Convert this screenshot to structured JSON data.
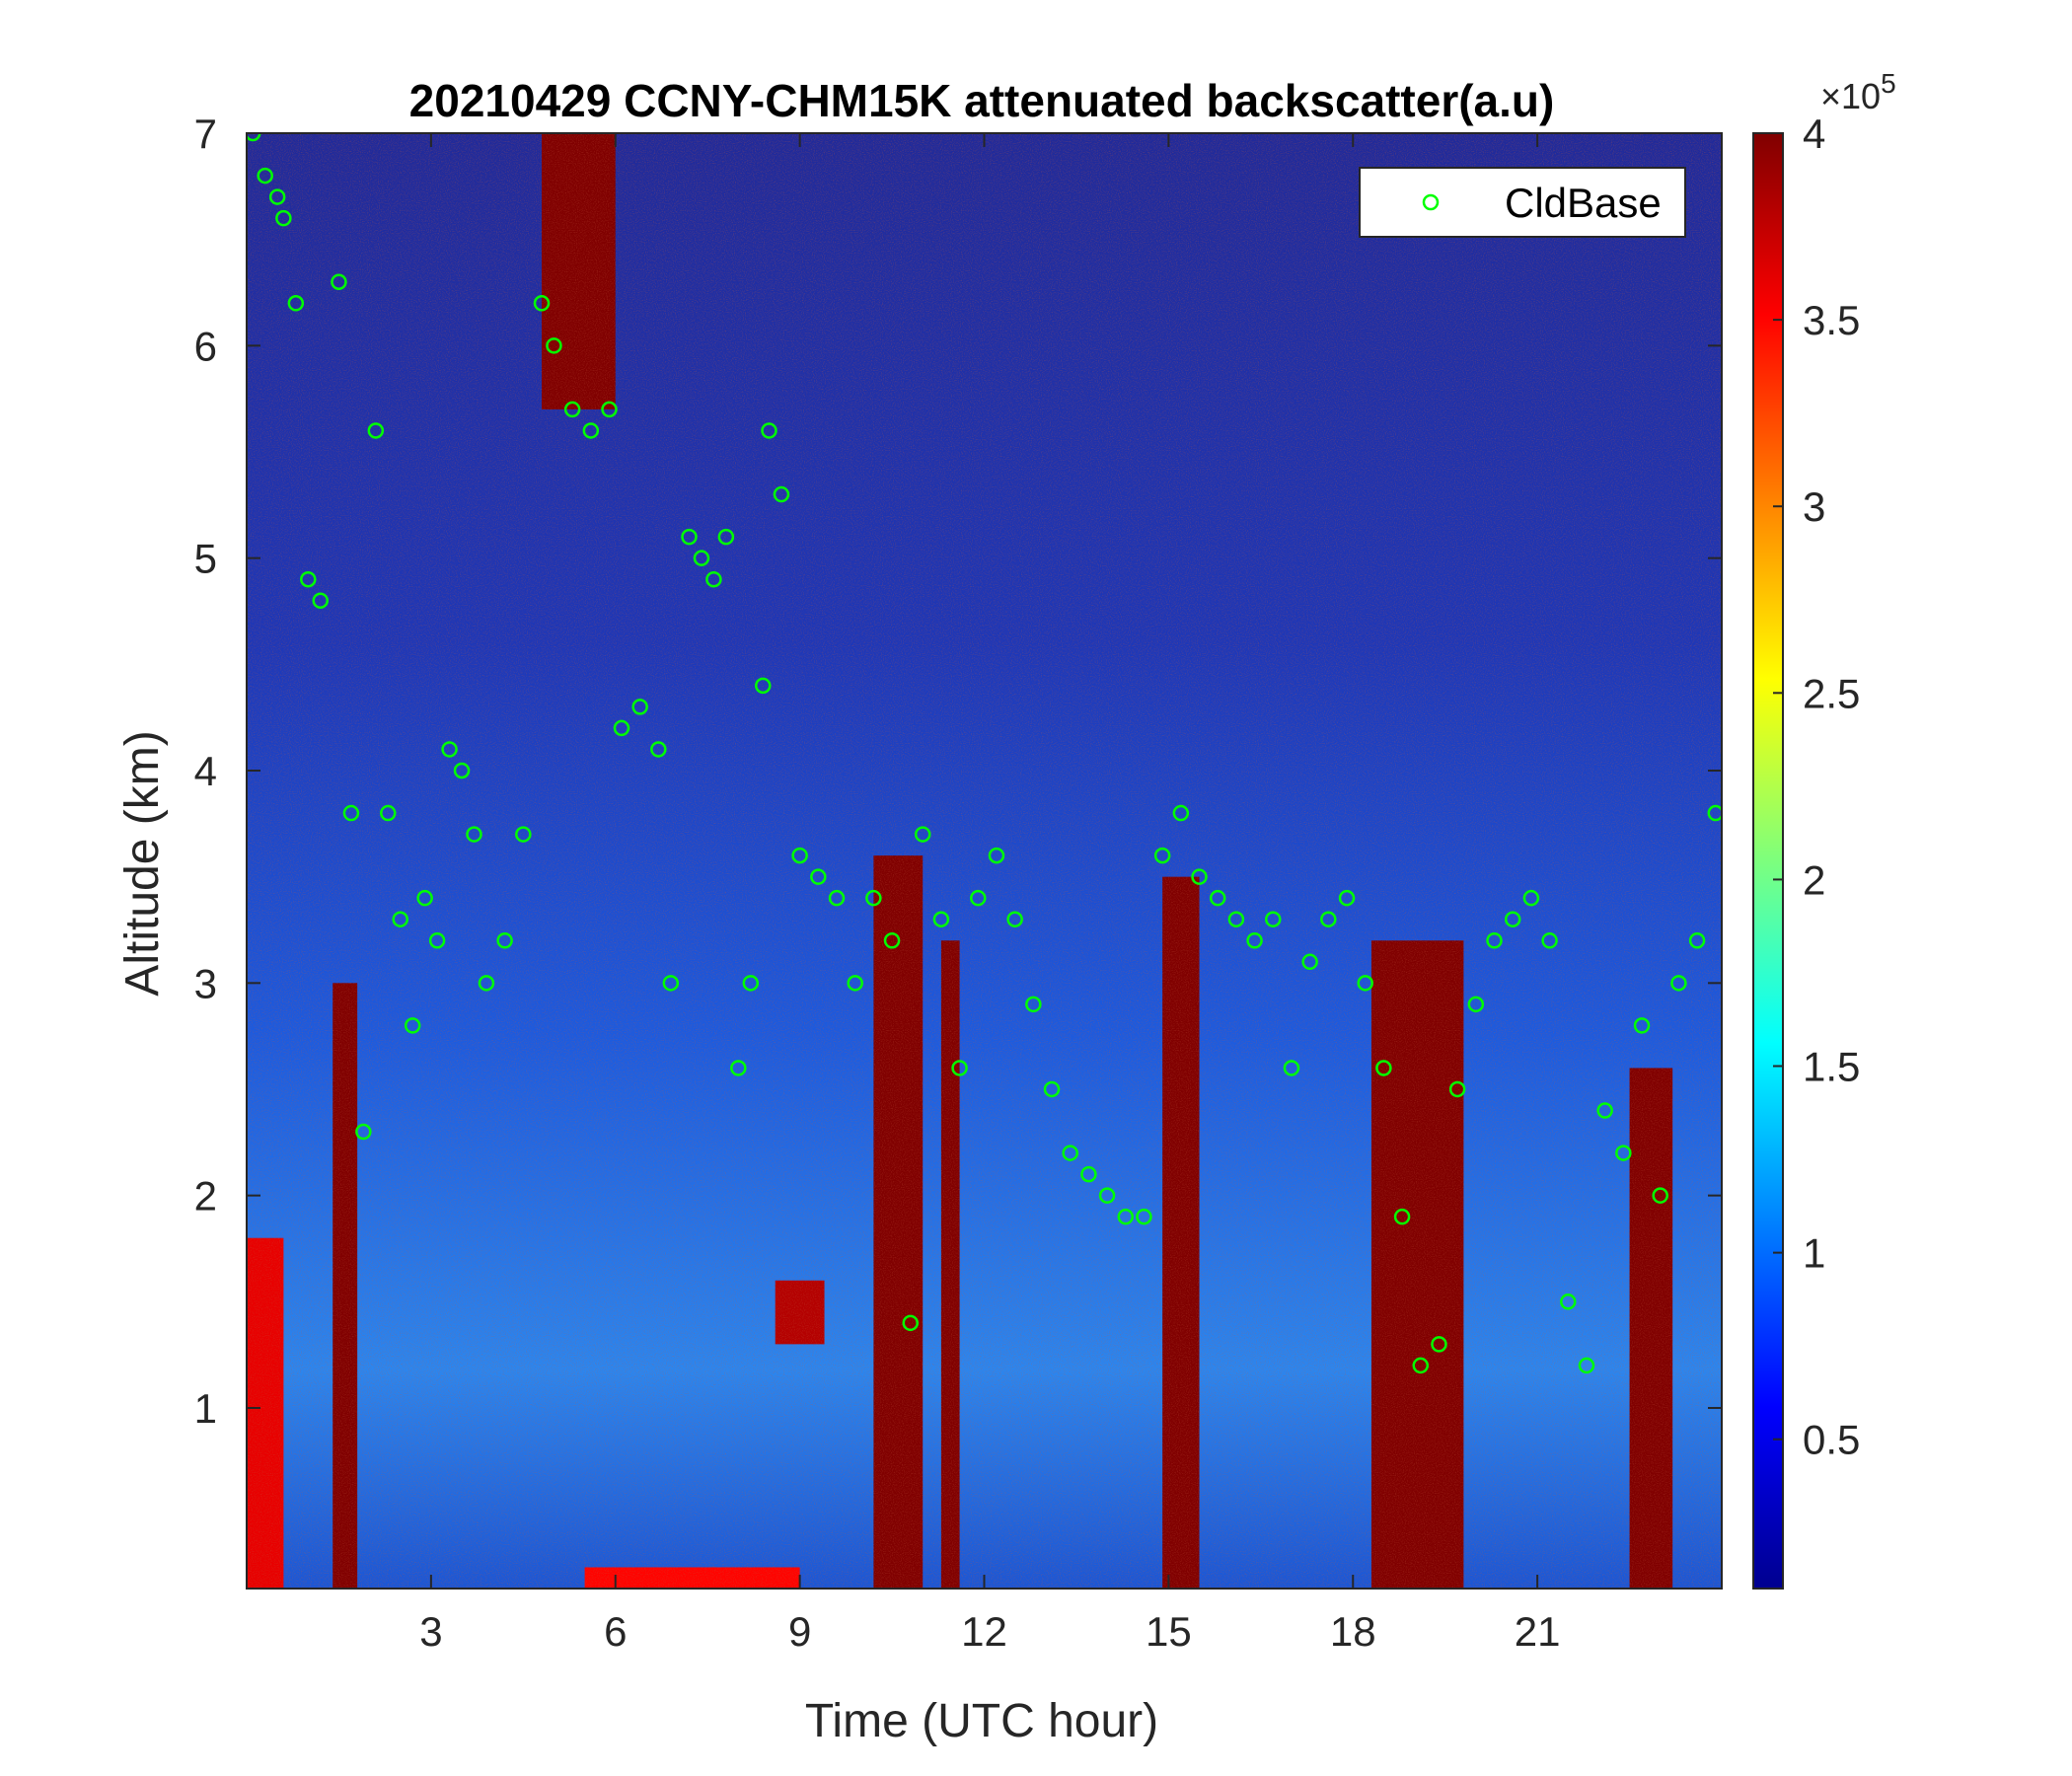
{
  "chart_data": {
    "type": "heatmap",
    "title": "20210429 CCNY-CHM15K attenuated backscatter(a.u)",
    "xlabel": "Time (UTC hour)",
    "ylabel": "Altitude (km)",
    "xlim": [
      0,
      24
    ],
    "ylim": [
      0.15,
      7
    ],
    "xticks": [
      3,
      6,
      9,
      12,
      15,
      18,
      21
    ],
    "yticks": [
      1,
      2,
      3,
      4,
      5,
      6,
      7
    ],
    "xtick_labels": [
      "3",
      "6",
      "9",
      "12",
      "15",
      "18",
      "21"
    ],
    "ytick_labels": [
      "1",
      "2",
      "3",
      "4",
      "5",
      "6",
      "7"
    ],
    "colormap": "jet",
    "colorbar": {
      "clim": [
        0.1,
        4
      ],
      "ticks": [
        0.5,
        1,
        1.5,
        2,
        2.5,
        3,
        3.5,
        4
      ],
      "tick_labels": [
        "0.5",
        "1",
        "1.5",
        "2",
        "2.5",
        "3",
        "3.5",
        "4"
      ],
      "multiplier_base": "×10",
      "multiplier_exp": "5"
    },
    "legend": {
      "position": "top-right",
      "entries": [
        "CldBase"
      ]
    },
    "grid": false,
    "series": [
      {
        "name": "CldBase",
        "marker": "circle-open",
        "color": "#00ff00",
        "x": [
          0.1,
          0.3,
          0.5,
          0.6,
          0.8,
          1.0,
          1.2,
          1.5,
          1.7,
          1.9,
          2.1,
          2.3,
          2.5,
          2.7,
          2.9,
          3.1,
          3.3,
          3.5,
          3.7,
          3.9,
          4.2,
          4.5,
          4.8,
          5.0,
          5.3,
          5.6,
          5.9,
          6.1,
          6.4,
          6.7,
          6.9,
          7.2,
          7.4,
          7.6,
          7.8,
          8.0,
          8.2,
          8.4,
          8.5,
          8.7,
          9.0,
          9.3,
          9.6,
          9.9,
          10.2,
          10.5,
          10.8,
          11.0,
          11.3,
          11.6,
          11.9,
          12.2,
          12.5,
          12.8,
          13.1,
          13.4,
          13.7,
          14.0,
          14.3,
          14.6,
          14.9,
          15.2,
          15.5,
          15.8,
          16.1,
          16.4,
          16.7,
          17.0,
          17.3,
          17.6,
          17.9,
          18.2,
          18.5,
          18.8,
          19.1,
          19.4,
          19.7,
          20.0,
          20.3,
          20.6,
          20.9,
          21.2,
          21.5,
          21.8,
          22.1,
          22.4,
          22.7,
          23.0,
          23.3,
          23.6,
          23.9
        ],
        "y": [
          7.0,
          6.8,
          6.7,
          6.6,
          6.2,
          4.9,
          4.8,
          6.3,
          3.8,
          2.3,
          5.6,
          3.8,
          3.3,
          2.8,
          3.4,
          3.2,
          4.1,
          4.0,
          3.7,
          3.0,
          3.2,
          3.7,
          6.2,
          6.0,
          5.7,
          5.6,
          5.7,
          4.2,
          4.3,
          4.1,
          3.0,
          5.1,
          5.0,
          4.9,
          5.1,
          2.6,
          3.0,
          4.4,
          5.6,
          5.3,
          3.6,
          3.5,
          3.4,
          3.0,
          3.4,
          3.2,
          1.4,
          3.7,
          3.3,
          2.6,
          3.4,
          3.6,
          3.3,
          2.9,
          2.5,
          2.2,
          2.1,
          2.0,
          1.9,
          1.9,
          3.6,
          3.8,
          3.5,
          3.4,
          3.3,
          3.2,
          3.3,
          2.6,
          3.1,
          3.3,
          3.4,
          3.0,
          2.6,
          1.9,
          1.2,
          1.3,
          2.5,
          2.9,
          3.2,
          3.3,
          3.4,
          3.2,
          1.5,
          1.2,
          2.4,
          2.2,
          2.8,
          2.0,
          3.0,
          3.2,
          3.8
        ]
      }
    ],
    "regions": [
      {
        "x": [
          1.4,
          1.8
        ],
        "y": [
          0.15,
          3.0
        ],
        "level": 4
      },
      {
        "x": [
          4.8,
          6.0
        ],
        "y": [
          5.7,
          7.0
        ],
        "level": 4
      },
      {
        "x": [
          10.2,
          11.0
        ],
        "y": [
          0.15,
          3.6
        ],
        "level": 4
      },
      {
        "x": [
          11.3,
          11.6
        ],
        "y": [
          0.15,
          3.2
        ],
        "level": 4
      },
      {
        "x": [
          14.9,
          15.5
        ],
        "y": [
          0.15,
          3.5
        ],
        "level": 4
      },
      {
        "x": [
          18.3,
          19.8
        ],
        "y": [
          0.15,
          3.2
        ],
        "level": 4
      },
      {
        "x": [
          22.5,
          23.2
        ],
        "y": [
          0.15,
          2.6
        ],
        "level": 4
      },
      {
        "x": [
          0.0,
          0.6
        ],
        "y": [
          0.15,
          1.8
        ],
        "level": 3.6
      },
      {
        "x": [
          5.5,
          9.0
        ],
        "y": [
          0.15,
          0.25
        ],
        "level": 3.5
      },
      {
        "x": [
          8.6,
          9.4
        ],
        "y": [
          1.3,
          1.6
        ],
        "level": 3.8
      }
    ]
  }
}
